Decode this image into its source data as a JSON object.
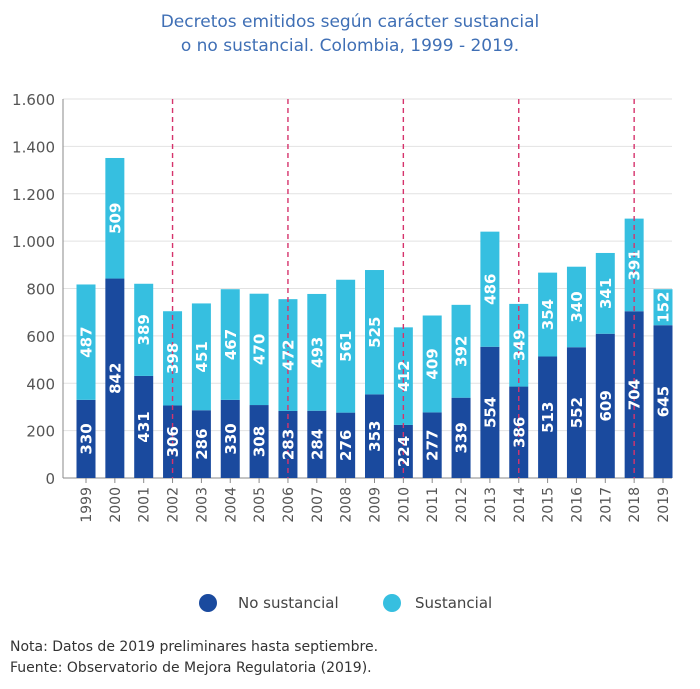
{
  "title_line1": "Decretos emitidos según carácter sustancial",
  "title_line2": "o no sustancial. Colombia, 1999 - 2019.",
  "note": "Nota: Datos de 2019 preliminares hasta septiembre.",
  "source": "Fuente: Observatorio de Mejora Regulatoria (2019).",
  "colors": {
    "no_sustancial": "#1a4a9e",
    "sustancial": "#36bfe0",
    "marker_line": "#d6336c",
    "axis": "#8a8a8a",
    "grid": "#e2e2e2"
  },
  "chart_data": {
    "type": "bar",
    "stacked": true,
    "title": "Decretos emitidos según carácter sustancial o no sustancial. Colombia, 1999 - 2019.",
    "categories": [
      "1999",
      "2000",
      "2001",
      "2002",
      "2003",
      "2004",
      "2005",
      "2006",
      "2007",
      "2008",
      "2009",
      "2010",
      "2011",
      "2012",
      "2013",
      "2014",
      "2015",
      "2016",
      "2017",
      "2018",
      "2019"
    ],
    "series": [
      {
        "name": "No sustancial",
        "values": [
          330,
          842,
          431,
          306,
          286,
          330,
          308,
          283,
          284,
          276,
          353,
          224,
          277,
          339,
          554,
          386,
          513,
          552,
          609,
          704,
          645
        ]
      },
      {
        "name": "Sustancial",
        "values": [
          487,
          509,
          389,
          398,
          451,
          467,
          470,
          472,
          493,
          561,
          525,
          412,
          409,
          392,
          486,
          349,
          354,
          340,
          341,
          391,
          152
        ]
      }
    ],
    "ylim": [
      0,
      1600
    ],
    "yticks": [
      0,
      200,
      400,
      600,
      800,
      1000,
      1200,
      1400,
      1600
    ],
    "ytick_labels": [
      "0",
      "200",
      "400",
      "600",
      "800",
      "1.000",
      "1.200",
      "1.400",
      "1.600"
    ],
    "grid": true,
    "legend": "bottom",
    "marked_years": [
      "2002",
      "2006",
      "2010",
      "2014",
      "2018"
    ]
  }
}
